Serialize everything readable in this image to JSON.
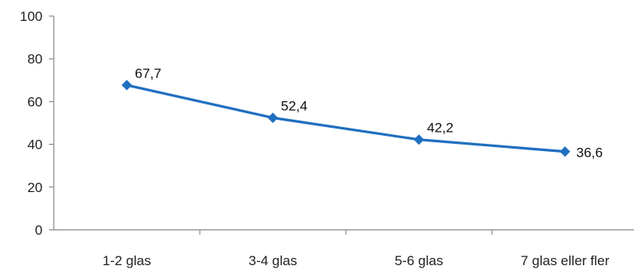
{
  "chart_data": {
    "type": "line",
    "title": "",
    "xlabel": "",
    "ylabel": "",
    "categories": [
      "1-2 glas",
      "3-4 glas",
      "5-6 glas",
      "7 glas eller fler"
    ],
    "series": [
      {
        "values": [
          67.7,
          52.4,
          42.2,
          36.6
        ],
        "labels": [
          "67,7",
          "52,4",
          "42,2",
          "36,6"
        ]
      }
    ],
    "ylim": [
      0,
      100
    ],
    "yticks": [
      "0",
      "20",
      "40",
      "60",
      "80",
      "100"
    ],
    "ytick_values": [
      0,
      20,
      40,
      60,
      80,
      100
    ],
    "grid": false,
    "legend": "none",
    "marker": "diamond",
    "color": "#1f6fc0"
  }
}
